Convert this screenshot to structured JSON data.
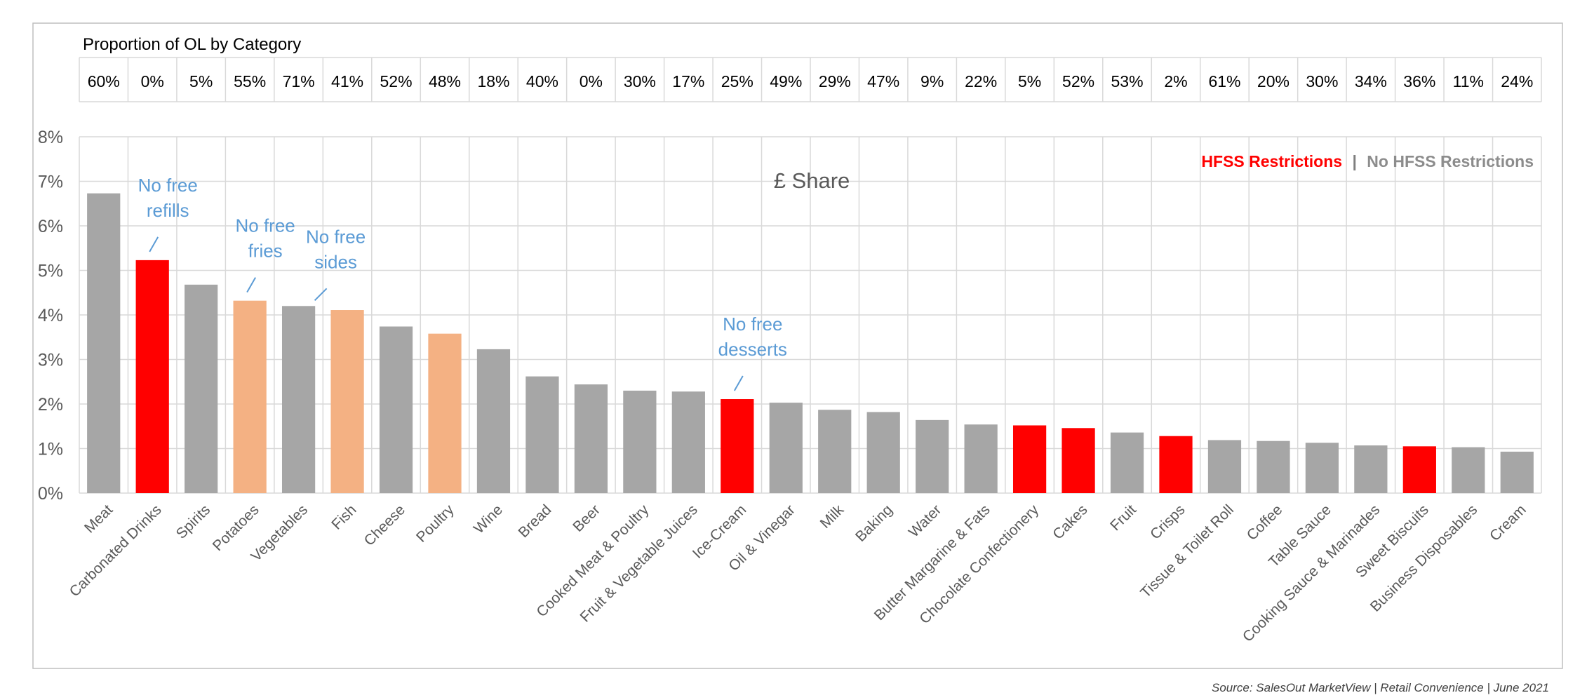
{
  "chart_data": {
    "type": "bar",
    "title": "£ Share",
    "ylim": [
      0,
      8
    ],
    "yticks": [
      "0%",
      "1%",
      "2%",
      "3%",
      "4%",
      "5%",
      "6%",
      "7%",
      "8%"
    ],
    "grid": true,
    "categories": [
      "Meat",
      "Carbonated Drinks",
      "Spirits",
      "Potatoes",
      "Vegetables",
      "Fish",
      "Cheese",
      "Poultry",
      "Wine",
      "Bread",
      "Beer",
      "Cooked Meat & Poultry",
      "Fruit & Vegetable Juices",
      "Ice-Cream",
      "Oil & Vinegar",
      "Milk",
      "Baking",
      "Water",
      "Butter Margarine & Fats",
      "Chocolate Confectionery",
      "Cakes",
      "Fruit",
      "Crisps",
      "Tissue & Toilet Roll",
      "Coffee",
      "Table Sauce",
      "Cooking Sauce & Marinades",
      "Sweet Biscuits",
      "Business Disposables",
      "Cream"
    ],
    "values": [
      6.73,
      5.23,
      4.68,
      4.32,
      4.2,
      4.11,
      3.74,
      3.58,
      3.23,
      2.62,
      2.44,
      2.3,
      2.28,
      2.11,
      2.03,
      1.87,
      1.82,
      1.64,
      1.54,
      1.52,
      1.46,
      1.36,
      1.28,
      1.19,
      1.17,
      1.13,
      1.07,
      1.05,
      1.03,
      0.93
    ],
    "bar_status": [
      "none",
      "hfss",
      "none",
      "partial",
      "none",
      "partial",
      "none",
      "partial",
      "none",
      "none",
      "none",
      "none",
      "none",
      "hfss",
      "none",
      "none",
      "none",
      "none",
      "none",
      "hfss",
      "hfss",
      "none",
      "hfss",
      "none",
      "none",
      "none",
      "none",
      "hfss",
      "none",
      "none"
    ],
    "colors": {
      "hfss": "#ff0000",
      "partial": "#f4b183",
      "none": "#a6a6a6",
      "annotation": "#5b9bd5",
      "grid": "#d9d9d9"
    },
    "ol_table": {
      "title": "Proportion of OL by Category",
      "values": [
        "60%",
        "0%",
        "5%",
        "55%",
        "71%",
        "41%",
        "52%",
        "48%",
        "18%",
        "40%",
        "0%",
        "30%",
        "17%",
        "25%",
        "49%",
        "29%",
        "47%",
        "9%",
        "22%",
        "5%",
        "52%",
        "53%",
        "2%",
        "61%",
        "20%",
        "30%",
        "34%",
        "36%",
        "11%",
        "24%"
      ]
    },
    "legend": {
      "position": "top-right",
      "hfss_label": "HFSS Restrictions",
      "separator": "|",
      "no_hfss_label": "No HFSS Restrictions"
    },
    "annotations": [
      {
        "category": "Carbonated Drinks",
        "lines": [
          "No free",
          "refills"
        ]
      },
      {
        "category": "Potatoes",
        "lines": [
          "No free",
          "fries"
        ]
      },
      {
        "category": "Vegetables",
        "lines": [
          "No free",
          "sides"
        ]
      },
      {
        "category": "Ice-Cream",
        "lines": [
          "No free",
          "desserts"
        ]
      }
    ],
    "source": "Source: SalesOut MarketView | Retail Convenience | June 2021"
  }
}
